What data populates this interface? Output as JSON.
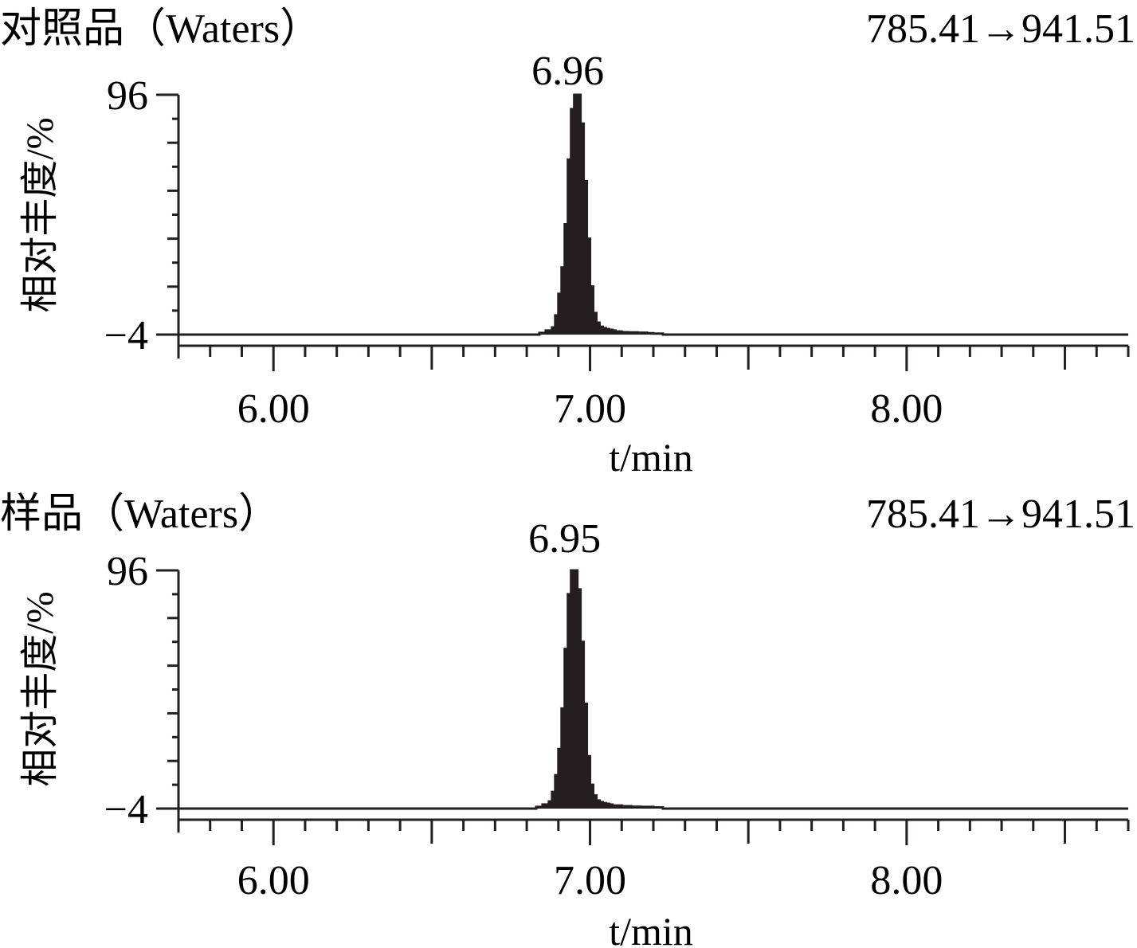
{
  "chart_data": [
    {
      "type": "area",
      "title": "对照品（Waters）",
      "transition": "785.41→941.51",
      "xlabel": "t/min",
      "ylabel": "相对丰度/%",
      "xlim": [
        5.7,
        8.7
      ],
      "ylim": [
        -4,
        96
      ],
      "yticks": [
        {
          "value": 96,
          "label": "96"
        },
        {
          "value": -4,
          "label": "-4"
        }
      ],
      "xticks": [
        {
          "value": 6.0,
          "label": "6.00"
        },
        {
          "value": 7.0,
          "label": "7.00"
        },
        {
          "value": 8.0,
          "label": "8.00"
        }
      ],
      "peak_label": {
        "x": 6.96,
        "label": "6.96"
      },
      "grid": false,
      "legend": "none",
      "series": [
        {
          "x": [
            5.7,
            6.8,
            6.84,
            6.86,
            6.88,
            6.89,
            6.9,
            6.91,
            6.92,
            6.93,
            6.94,
            6.95,
            6.96,
            6.97,
            6.98,
            6.99,
            7.0,
            7.01,
            7.02,
            7.03,
            7.04,
            7.05,
            7.06,
            7.07,
            7.08,
            7.1,
            7.12,
            7.15,
            7.18,
            7.2,
            7.23,
            8.7
          ],
          "y": [
            -4,
            -4,
            -3.3,
            -2.3,
            -1,
            4,
            13,
            24,
            42,
            69,
            90,
            96,
            96,
            84,
            60,
            36,
            16,
            5,
            1,
            -0.7,
            -1.3,
            -1.7,
            -2,
            -2.3,
            -2.7,
            -3,
            -3.1,
            -3.2,
            -3.4,
            -3.6,
            -4,
            -4
          ]
        }
      ]
    },
    {
      "type": "area",
      "title": "样品（Waters）",
      "transition": "785.41→941.51",
      "xlabel": "t/min",
      "ylabel": "相对丰度/%",
      "xlim": [
        5.7,
        8.7
      ],
      "ylim": [
        -4,
        96
      ],
      "yticks": [
        {
          "value": 96,
          "label": "96"
        },
        {
          "value": -4,
          "label": "-4"
        }
      ],
      "xticks": [
        {
          "value": 6.0,
          "label": "6.00"
        },
        {
          "value": 7.0,
          "label": "7.00"
        },
        {
          "value": 8.0,
          "label": "8.00"
        }
      ],
      "peak_label": {
        "x": 6.95,
        "label": "6.95"
      },
      "grid": false,
      "legend": "none",
      "series": [
        {
          "x": [
            5.7,
            6.8,
            6.83,
            6.85,
            6.87,
            6.88,
            6.89,
            6.9,
            6.91,
            6.92,
            6.93,
            6.94,
            6.95,
            6.96,
            6.97,
            6.98,
            6.99,
            7.0,
            7.01,
            7.02,
            7.03,
            7.04,
            7.05,
            7.06,
            7.07,
            7.1,
            7.13,
            7.16,
            7.2,
            7.23,
            8.7
          ],
          "y": [
            -4,
            -4,
            -3.3,
            -2.3,
            -1,
            3,
            10,
            21,
            38,
            63,
            86,
            96,
            96,
            88,
            66,
            40,
            18,
            6,
            1.5,
            -0.6,
            -1.3,
            -1.7,
            -2,
            -2.3,
            -2.7,
            -3,
            -3.2,
            -3.3,
            -3.5,
            -4,
            -4
          ]
        }
      ]
    }
  ]
}
